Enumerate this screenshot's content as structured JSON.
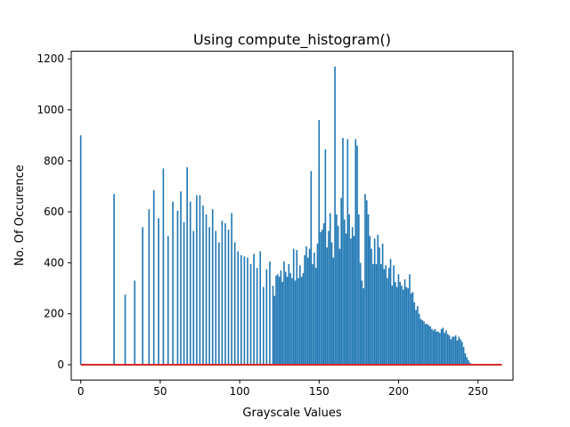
{
  "chart_data": {
    "type": "bar",
    "title": "Using compute_histogram()",
    "xlabel": "Grayscale Values",
    "ylabel": "No. Of Occurence",
    "xlim": [
      -6,
      272
    ],
    "ylim": [
      -60,
      1230
    ],
    "xticks": [
      0,
      50,
      100,
      150,
      200,
      250
    ],
    "yticks": [
      0,
      200,
      400,
      600,
      800,
      1000,
      1200
    ],
    "xtick_labels": [
      "0",
      "50",
      "100",
      "150",
      "200",
      "250"
    ],
    "ytick_labels": [
      "0",
      "200",
      "400",
      "600",
      "800",
      "1000",
      "1200"
    ],
    "grid": false,
    "bar_color": "#1f77b4",
    "line_color": "#d62728",
    "series": [
      {
        "x": [
          0,
          21,
          28,
          34,
          39,
          43,
          46,
          49,
          52,
          55,
          58,
          61,
          63,
          65,
          67,
          69,
          71,
          73,
          75,
          77,
          79,
          81,
          83,
          85,
          87,
          89,
          91,
          93,
          95,
          97,
          99,
          101,
          103,
          105,
          107,
          109,
          111,
          113,
          115,
          117,
          119,
          121,
          122,
          123,
          124,
          125,
          126,
          127,
          128,
          129,
          130,
          131,
          132,
          133,
          134,
          135,
          136,
          137,
          138,
          139,
          140,
          141,
          142,
          143,
          144,
          145,
          146,
          147,
          148,
          149,
          150,
          151,
          152,
          153,
          154,
          155,
          156,
          157,
          158,
          159,
          160,
          161,
          162,
          163,
          164,
          165,
          166,
          167,
          168,
          169,
          170,
          171,
          172,
          173,
          174,
          175,
          176,
          177,
          178,
          179,
          180,
          181,
          182,
          183,
          184,
          185,
          186,
          187,
          188,
          189,
          190,
          191,
          192,
          193,
          194,
          195,
          196,
          197,
          198,
          199,
          200,
          201,
          202,
          203,
          204,
          205,
          206,
          207,
          208,
          209,
          210,
          211,
          212,
          213,
          214,
          215,
          216,
          217,
          218,
          219,
          220,
          221,
          222,
          223,
          224,
          225,
          226,
          227,
          228,
          229,
          230,
          231,
          232,
          233,
          234,
          235,
          236,
          237,
          238,
          239,
          240,
          241,
          242,
          243,
          244,
          245
        ],
        "values": [
          900,
          670,
          275,
          330,
          540,
          610,
          685,
          575,
          770,
          505,
          640,
          605,
          680,
          560,
          775,
          640,
          525,
          665,
          665,
          625,
          590,
          540,
          610,
          525,
          480,
          565,
          555,
          530,
          595,
          480,
          445,
          430,
          425,
          420,
          395,
          435,
          380,
          445,
          305,
          375,
          405,
          310,
          270,
          350,
          355,
          345,
          370,
          325,
          405,
          365,
          345,
          395,
          360,
          340,
          455,
          330,
          450,
          340,
          390,
          345,
          360,
          430,
          465,
          420,
          455,
          760,
          395,
          440,
          380,
          475,
          960,
          520,
          530,
          555,
          845,
          460,
          525,
          595,
          480,
          420,
          1170,
          590,
          545,
          455,
          655,
          890,
          570,
          515,
          885,
          590,
          495,
          540,
          505,
          885,
          860,
          590,
          400,
          330,
          300,
          670,
          645,
          590,
          505,
          455,
          395,
          495,
          395,
          510,
          460,
          395,
          475,
          375,
          390,
          340,
          380,
          415,
          310,
          390,
          325,
          305,
          355,
          325,
          310,
          295,
          335,
          305,
          300,
          355,
          280,
          285,
          245,
          215,
          230,
          200,
          180,
          175,
          170,
          160,
          160,
          155,
          150,
          140,
          135,
          140,
          130,
          130,
          125,
          140,
          145,
          125,
          135,
          120,
          115,
          100,
          110,
          110,
          115,
          95,
          110,
          100,
          90,
          70,
          45,
          30,
          18,
          8
        ]
      },
      {
        "name": "",
        "type": "line",
        "x": [
          0,
          265
        ],
        "values": [
          0,
          0
        ]
      }
    ]
  }
}
